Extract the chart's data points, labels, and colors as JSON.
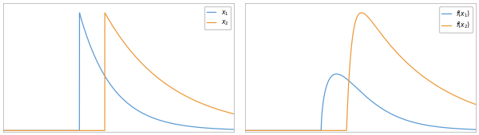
{
  "blue_color": "#5b9bd5",
  "orange_color": "#ed9a3b",
  "t1": 0.33,
  "t2": 0.44,
  "decay1": 7.0,
  "decay2": 3.5,
  "legend1": [
    "$x_1$",
    "$x_2$"
  ],
  "legend2": [
    "$f(x_1)$",
    "$f(x_2)$"
  ],
  "figsize": [
    6.0,
    1.7
  ],
  "dpi": 100
}
